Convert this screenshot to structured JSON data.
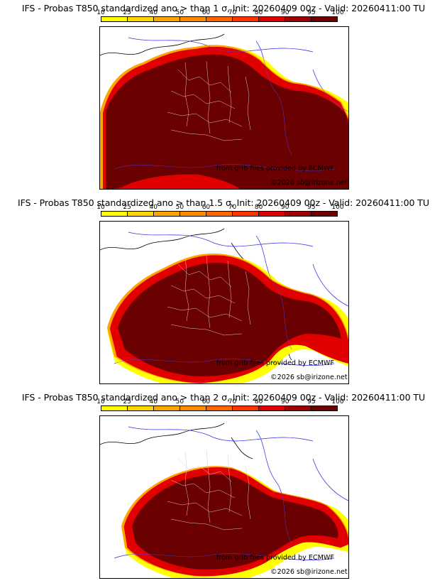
{
  "legend": {
    "ticks": [
      "10",
      "25",
      "40",
      "50",
      "60",
      "70",
      "80",
      "90",
      "95",
      "100"
    ],
    "colors": [
      "#ffff00",
      "#ffd700",
      "#ffa500",
      "#ff8c00",
      "#ff6600",
      "#ff3300",
      "#e00000",
      "#a00000",
      "#700000"
    ]
  },
  "panels": [
    {
      "title": "IFS - Probas T850  standardized ano > than 1 σ, Init: 20260409 00z - Valid: 20260411:00 TU",
      "source": "from grib files provided by ECMWF",
      "copyright": "©2026 sb@irizone.net"
    },
    {
      "title": "IFS - Probas T850  standardized ano > than 1.5 σ, Init: 20260409 00z - Valid: 20260411:00 TU",
      "source": "from grib files provided by ECMWF",
      "copyright": "©2026 sb@irizone.net"
    },
    {
      "title": "IFS - Probas T850  standardized ano > than 2 σ, Init: 20260409 00z - Valid: 20260411:00 TU",
      "source": "from grib files provided by ECMWF",
      "copyright": "©2026 sb@irizone.net"
    }
  ],
  "colors": {
    "ocean_border": "#0000dd",
    "coast": "#000000",
    "dept_lines": "#bbbbbb",
    "core": "#6b0000"
  }
}
